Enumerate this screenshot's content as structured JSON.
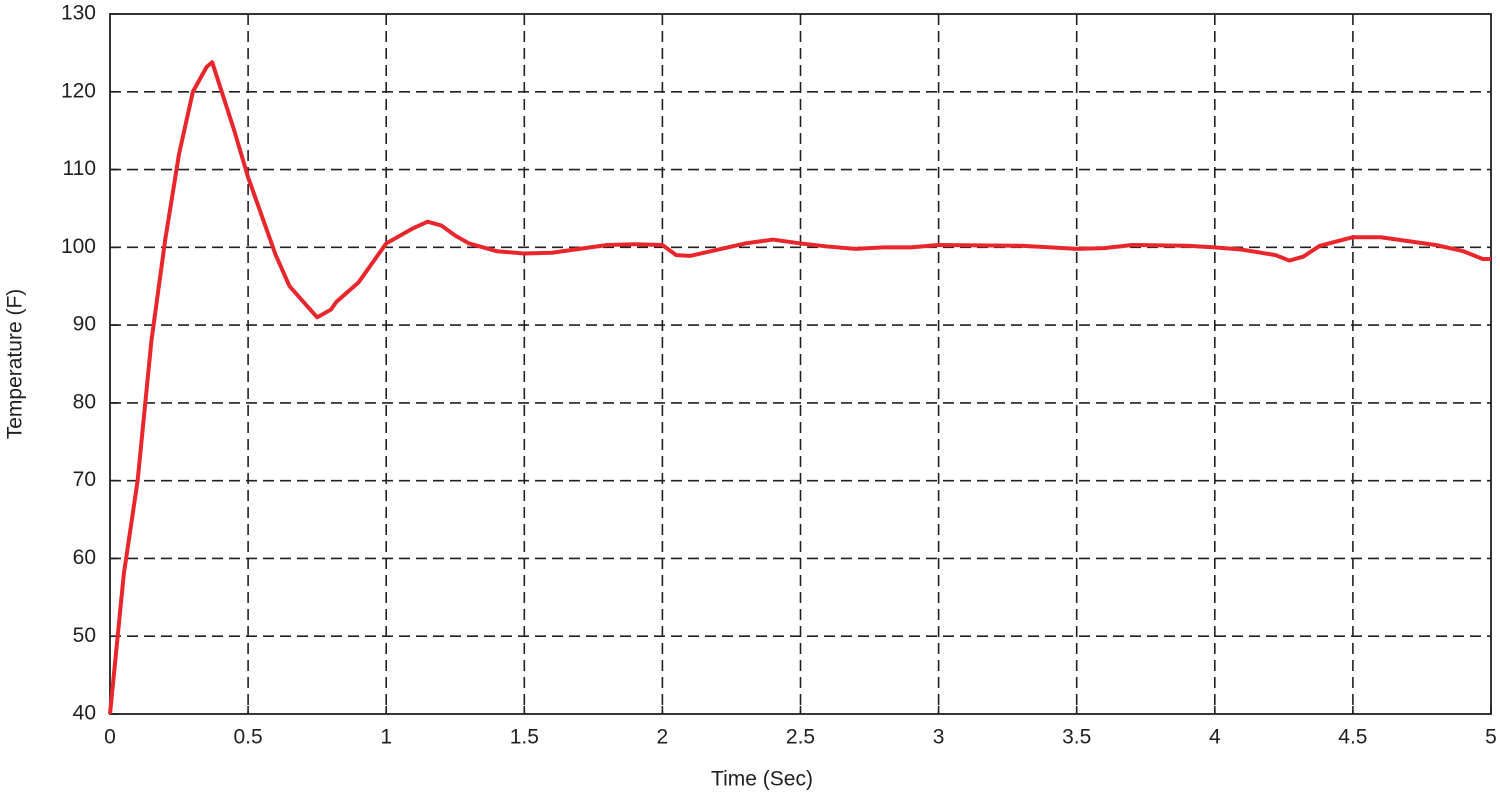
{
  "chart_data": {
    "type": "line",
    "x_label": "Time (Sec)",
    "y_label": "Temperature (F)",
    "xlim": [
      0,
      5
    ],
    "xticks": [
      0,
      0.5,
      1,
      1.5,
      2,
      2.5,
      3,
      3.5,
      4,
      4.5,
      5
    ],
    "ylim": [
      40,
      130
    ],
    "yticks": [
      40,
      50,
      60,
      70,
      80,
      90,
      100,
      110,
      120,
      130
    ],
    "grid": true,
    "series": [
      {
        "color": "#e8262b",
        "x": [
          0,
          0.05,
          0.1,
          0.15,
          0.2,
          0.25,
          0.3,
          0.35,
          0.37,
          0.4,
          0.45,
          0.5,
          0.55,
          0.6,
          0.65,
          0.7,
          0.75,
          0.8,
          0.82,
          0.9,
          0.95,
          1.0,
          1.1,
          1.15,
          1.2,
          1.25,
          1.3,
          1.4,
          1.5,
          1.6,
          1.7,
          1.8,
          1.9,
          2.0,
          2.05,
          2.1,
          2.2,
          2.3,
          2.4,
          2.5,
          2.6,
          2.7,
          2.8,
          2.9,
          3.0,
          3.3,
          3.5,
          3.6,
          3.7,
          3.9,
          4.0,
          4.1,
          4.22,
          4.27,
          4.32,
          4.38,
          4.5,
          4.6,
          4.7,
          4.8,
          4.9,
          4.97,
          5.0
        ],
        "values": [
          40,
          58,
          70,
          88,
          101,
          112,
          120,
          123.2,
          123.8,
          120.5,
          115,
          109,
          104,
          99,
          95,
          93,
          91,
          92,
          93,
          95.5,
          98,
          100.5,
          102.5,
          103.3,
          102.8,
          101.5,
          100.5,
          99.5,
          99.2,
          99.3,
          99.8,
          100.3,
          100.4,
          100.3,
          99,
          98.9,
          99.7,
          100.5,
          101,
          100.5,
          100.1,
          99.8,
          100,
          100,
          100.3,
          100.2,
          99.8,
          99.9,
          100.3,
          100.2,
          100,
          99.7,
          99,
          98.3,
          98.8,
          100.2,
          101.3,
          101.3,
          100.8,
          100.3,
          99.5,
          98.5,
          98.5
        ]
      }
    ]
  }
}
